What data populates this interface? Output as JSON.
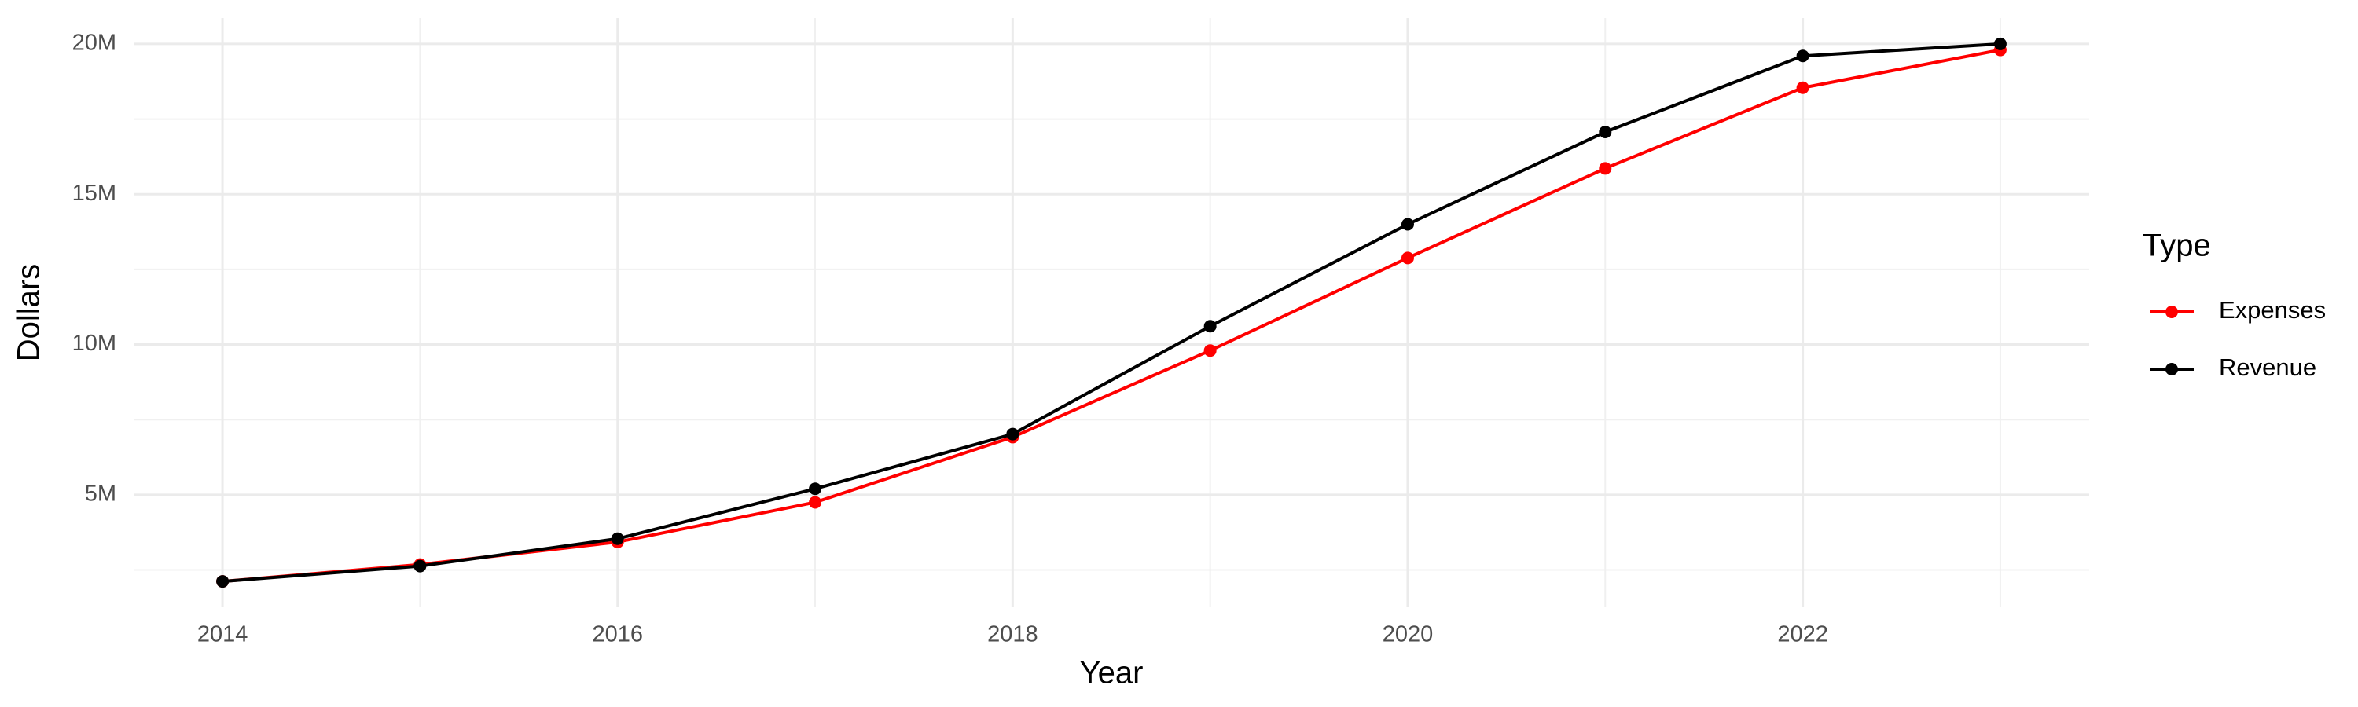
{
  "chart_data": {
    "type": "line",
    "x_label": "Year",
    "y_label": "Dollars",
    "legend_title": "Type",
    "legend_position": "right",
    "grid": true,
    "x": [
      2014,
      2015,
      2016,
      2017,
      2018,
      2019,
      2020,
      2021,
      2022,
      2023
    ],
    "series": [
      {
        "name": "Expenses",
        "color": "#ff0000",
        "values": [
          2120000,
          2680000,
          3430000,
          4750000,
          6920000,
          9800000,
          12880000,
          15860000,
          18540000,
          19800000
        ]
      },
      {
        "name": "Revenue",
        "color": "#000000",
        "values": [
          2120000,
          2630000,
          3540000,
          5200000,
          7020000,
          10610000,
          14000000,
          17070000,
          19600000,
          20000000
        ]
      }
    ],
    "xlim": [
      2013.55,
      2023.45
    ],
    "xticks": [
      2014,
      2016,
      2018,
      2020,
      2022
    ],
    "ylim": [
      1260000,
      20860000
    ],
    "yticks": [
      {
        "value": 5000000,
        "label": "5M"
      },
      {
        "value": 10000000,
        "label": "10M"
      },
      {
        "value": 15000000,
        "label": "15M"
      },
      {
        "value": 20000000,
        "label": "20M"
      }
    ]
  }
}
